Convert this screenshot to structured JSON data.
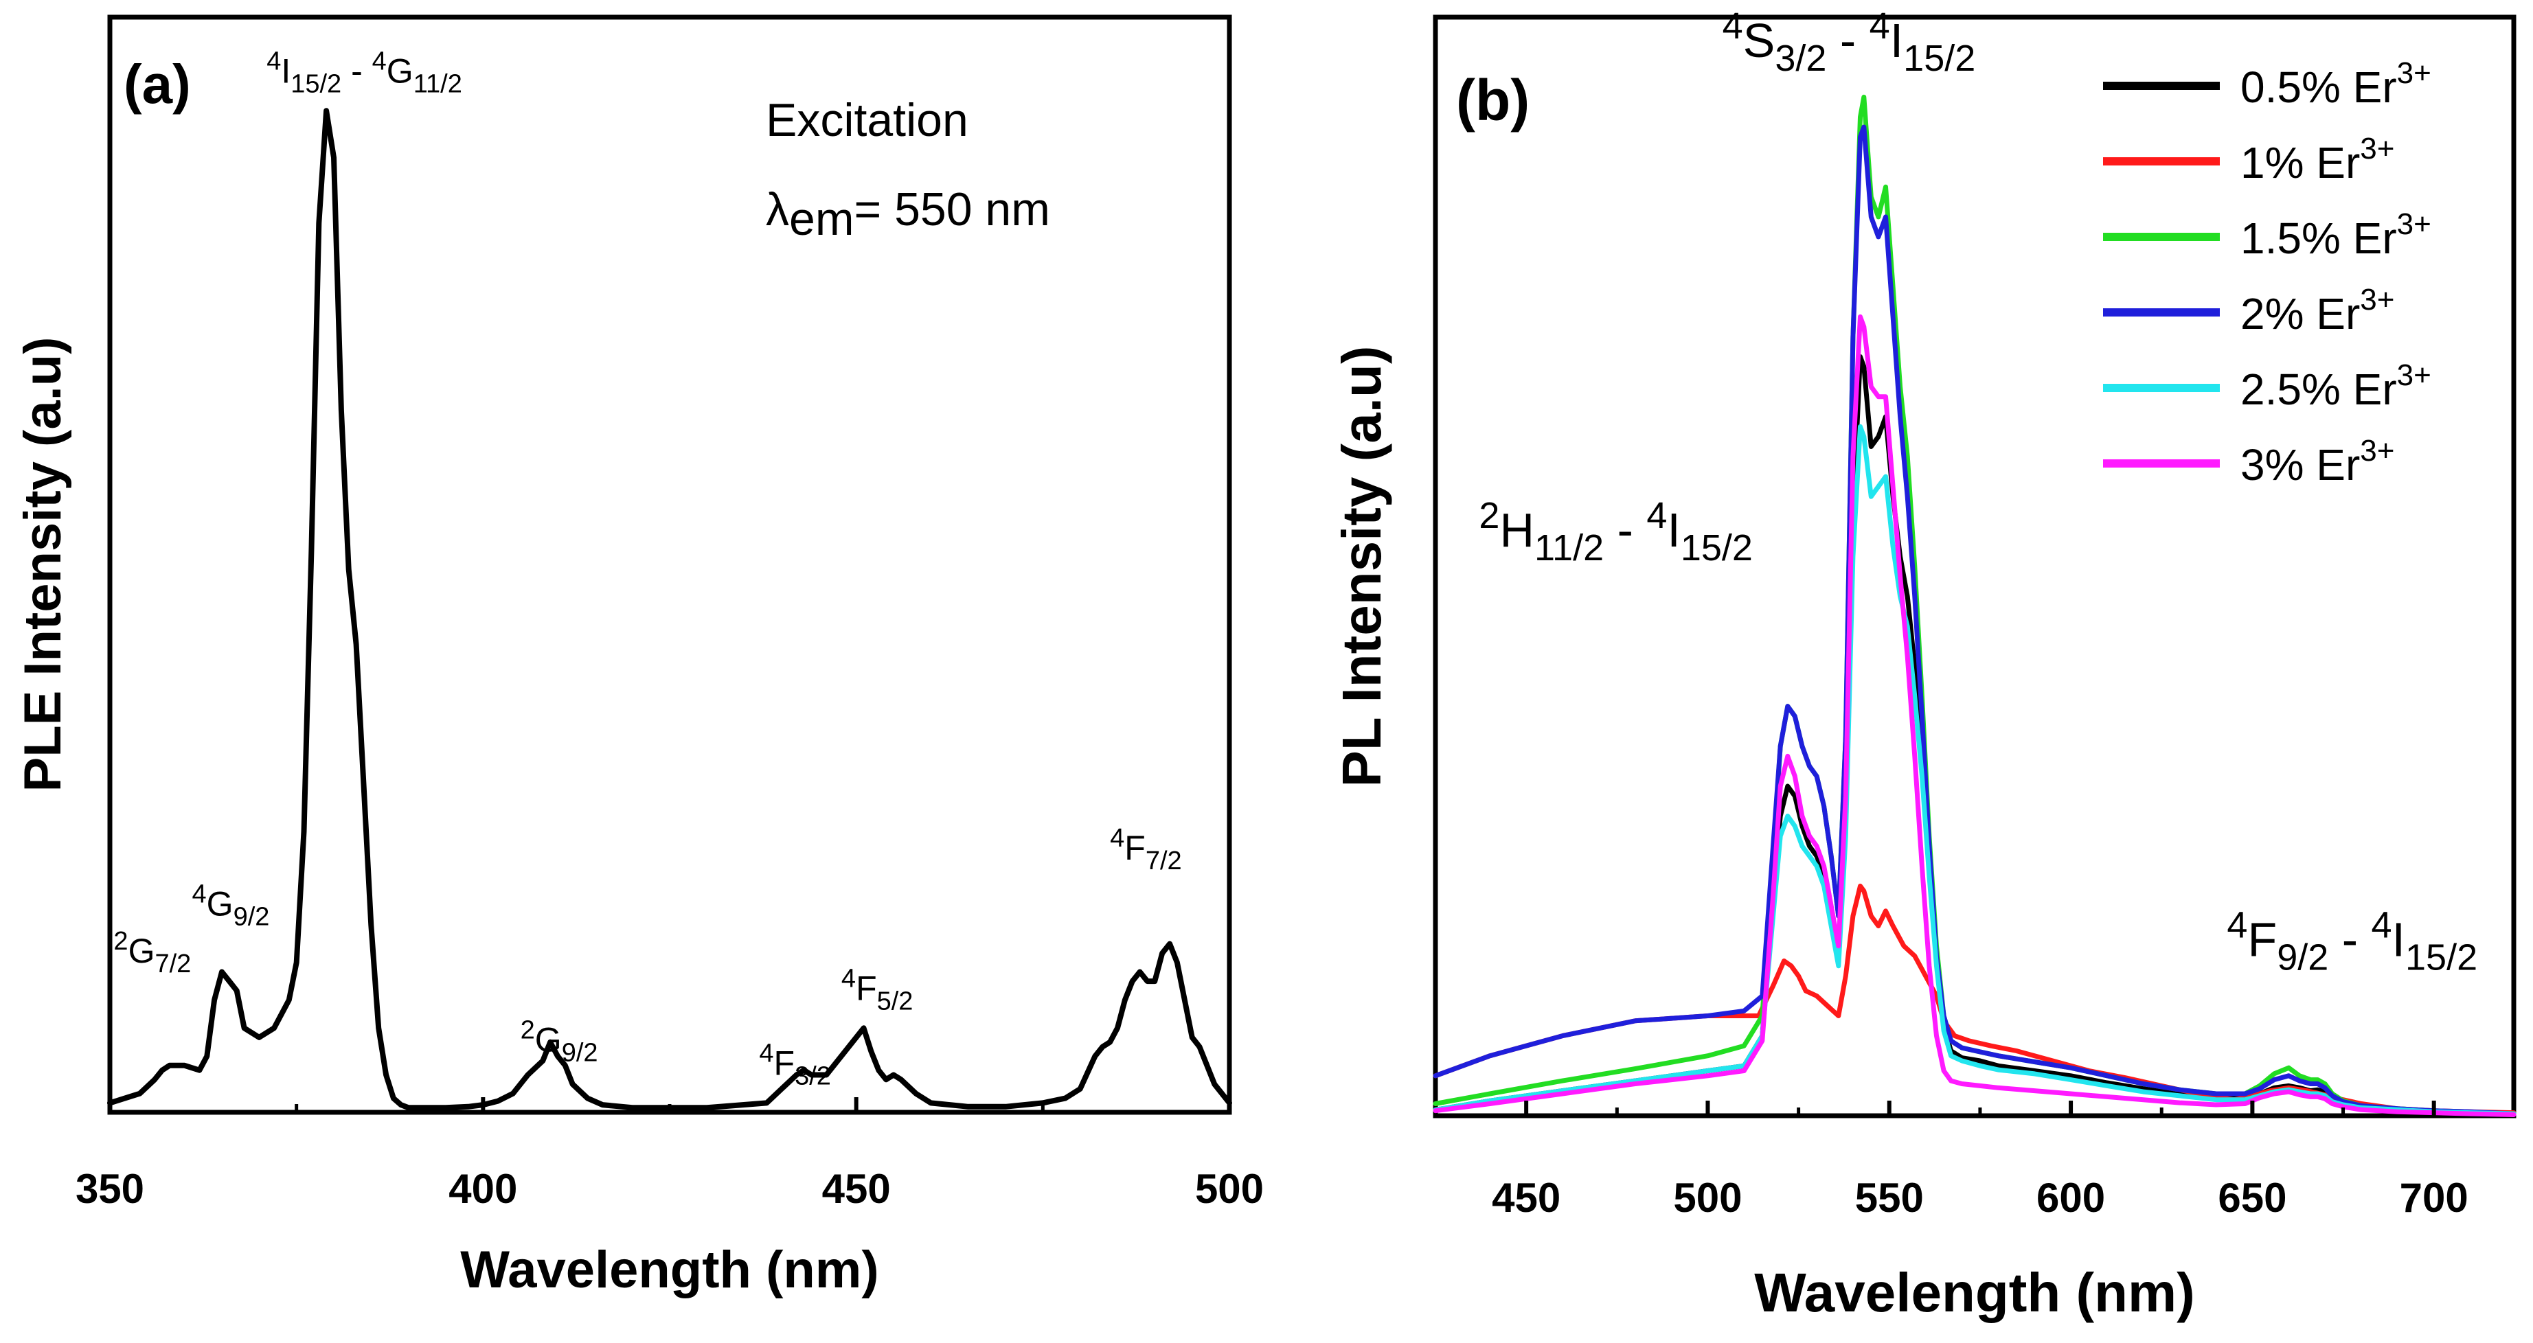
{
  "chart_data": [
    {
      "type": "line",
      "panel_label": "(a)",
      "xlabel": "Wavelength (nm)",
      "ylabel": "PLE Intensity (a.u)",
      "xlim": [
        350,
        500
      ],
      "ylim": [
        0,
        1.17
      ],
      "x_ticks": [
        "350",
        "400",
        "450",
        "500"
      ],
      "grid": false,
      "info_text": {
        "line1": "Excitation",
        "lambda": "λ",
        "em": "em",
        "rest": "= 550 nm"
      },
      "annotations": [
        {
          "sup": "4",
          "base": "I",
          "sub": "15/2",
          "sep": " - ",
          "sup2": "4",
          "base2": "G",
          "sub2": "11/2",
          "x": 371,
          "y": 1.1
        },
        {
          "sup": "4",
          "base": "G",
          "sub": "9/2",
          "x": 361,
          "y": 0.21
        },
        {
          "sup": "2",
          "base": "G",
          "sub": "7/2",
          "x": 350.5,
          "y": 0.16
        },
        {
          "sup": "2",
          "base": "G",
          "sub": "9/2",
          "x": 405,
          "y": 0.065
        },
        {
          "sup": "4",
          "base": "F",
          "sub": "3/2",
          "x": 437,
          "y": 0.04
        },
        {
          "sup": "4",
          "base": "F",
          "sub": "5/2",
          "x": 448,
          "y": 0.12
        },
        {
          "sup": "4",
          "base": "F",
          "sub": "7/2",
          "x": 484,
          "y": 0.27
        }
      ],
      "series": [
        {
          "name": "Excitation",
          "color": "#000000",
          "x": [
            350,
            352,
            354,
            356,
            357,
            358,
            360,
            362,
            363,
            364,
            365,
            366,
            367,
            368,
            370,
            372,
            374,
            375,
            376,
            377,
            378,
            379,
            380,
            381,
            382,
            383,
            384,
            385,
            386,
            387,
            388,
            389,
            390,
            392,
            395,
            398,
            400,
            402,
            404,
            406,
            408,
            409,
            410,
            411,
            412,
            414,
            416,
            420,
            430,
            438,
            440,
            442,
            443,
            444,
            446,
            448,
            450,
            451,
            452,
            453,
            454,
            455,
            456,
            458,
            460,
            465,
            470,
            475,
            478,
            480,
            482,
            483,
            484,
            485,
            486,
            487,
            488,
            489,
            490,
            491,
            492,
            493,
            494,
            495,
            496,
            498,
            500
          ],
          "y": [
            0.01,
            0.015,
            0.02,
            0.035,
            0.045,
            0.05,
            0.05,
            0.045,
            0.06,
            0.12,
            0.15,
            0.14,
            0.13,
            0.09,
            0.08,
            0.09,
            0.12,
            0.16,
            0.3,
            0.6,
            0.95,
            1.07,
            1.02,
            0.75,
            0.58,
            0.5,
            0.35,
            0.2,
            0.09,
            0.04,
            0.015,
            0.008,
            0.005,
            0.005,
            0.005,
            0.006,
            0.008,
            0.012,
            0.02,
            0.04,
            0.055,
            0.075,
            0.06,
            0.05,
            0.03,
            0.015,
            0.008,
            0.005,
            0.005,
            0.01,
            0.025,
            0.04,
            0.045,
            0.04,
            0.04,
            0.06,
            0.08,
            0.09,
            0.065,
            0.045,
            0.035,
            0.04,
            0.035,
            0.02,
            0.01,
            0.006,
            0.006,
            0.01,
            0.015,
            0.025,
            0.06,
            0.07,
            0.075,
            0.09,
            0.12,
            0.14,
            0.15,
            0.14,
            0.14,
            0.17,
            0.18,
            0.16,
            0.12,
            0.08,
            0.07,
            0.03,
            0.01
          ]
        }
      ]
    },
    {
      "type": "line",
      "panel_label": "(b)",
      "xlabel": "Wavelength (nm)",
      "ylabel": "PL Intensity (a.u)",
      "xlim": [
        425,
        722
      ],
      "ylim": [
        0,
        1.1
      ],
      "x_ticks": [
        "450",
        "500",
        "550",
        "600",
        "650",
        "700"
      ],
      "grid": false,
      "legend_position": "top-right",
      "legend_sup": "3+",
      "annotations": [
        {
          "sup": "4",
          "base": "S",
          "sub": "3/2",
          "sep": " - ",
          "sup2": "4",
          "base2": "I",
          "sub2": "15/2",
          "x": 504,
          "y": 1.06
        },
        {
          "sup": "2",
          "base": "H",
          "sub": "11/2",
          "sep": " - ",
          "sup2": "4",
          "base2": "I",
          "sub2": "15/2",
          "x": 437,
          "y": 0.57
        },
        {
          "sup": "4",
          "base": "F",
          "sub": "9/2",
          "sep": " - ",
          "sup2": "4",
          "base2": "I",
          "sub2": "15/2",
          "x": 643,
          "y": 0.16
        }
      ],
      "series": [
        {
          "name": "0.5% Er",
          "color": "#000000",
          "x": [
            425,
            440,
            460,
            480,
            500,
            510,
            515,
            518,
            520,
            522,
            524,
            526,
            528,
            530,
            532,
            534,
            536,
            538,
            540,
            542,
            543,
            545,
            547,
            549,
            551,
            553,
            555,
            557,
            559,
            561,
            563,
            565,
            567,
            570,
            575,
            580,
            590,
            600,
            610,
            620,
            630,
            640,
            648,
            652,
            656,
            660,
            663,
            666,
            668,
            670,
            672,
            675,
            680,
            690,
            700,
            710,
            722
          ],
          "y": [
            0.006,
            0.015,
            0.025,
            0.035,
            0.045,
            0.05,
            0.08,
            0.22,
            0.3,
            0.33,
            0.32,
            0.29,
            0.27,
            0.26,
            0.24,
            0.2,
            0.16,
            0.3,
            0.6,
            0.76,
            0.75,
            0.67,
            0.68,
            0.7,
            0.62,
            0.56,
            0.52,
            0.45,
            0.36,
            0.26,
            0.16,
            0.09,
            0.065,
            0.058,
            0.055,
            0.05,
            0.045,
            0.04,
            0.033,
            0.027,
            0.022,
            0.018,
            0.018,
            0.022,
            0.028,
            0.03,
            0.028,
            0.025,
            0.026,
            0.024,
            0.017,
            0.013,
            0.009,
            0.006,
            0.004,
            0.003,
            0.002
          ]
        },
        {
          "name": "1% Er",
          "color": "#ff1a1a",
          "x": [
            425,
            440,
            460,
            480,
            500,
            510,
            514,
            518,
            521,
            523,
            525,
            527,
            530,
            533,
            536,
            538,
            540,
            542,
            543,
            545,
            547,
            549,
            551,
            554,
            557,
            560,
            563,
            565,
            568,
            572,
            578,
            585,
            595,
            605,
            615,
            625,
            635,
            645,
            650,
            655,
            660,
            665,
            670,
            675,
            680,
            690,
            700,
            710,
            722
          ],
          "y": [
            0.04,
            0.06,
            0.08,
            0.095,
            0.1,
            0.1,
            0.1,
            0.13,
            0.155,
            0.15,
            0.14,
            0.125,
            0.12,
            0.11,
            0.1,
            0.14,
            0.2,
            0.23,
            0.225,
            0.2,
            0.19,
            0.205,
            0.19,
            0.17,
            0.16,
            0.14,
            0.12,
            0.095,
            0.08,
            0.075,
            0.07,
            0.065,
            0.055,
            0.045,
            0.038,
            0.03,
            0.022,
            0.016,
            0.02,
            0.025,
            0.028,
            0.025,
            0.021,
            0.016,
            0.012,
            0.007,
            0.005,
            0.004,
            0.003
          ]
        },
        {
          "name": "1.5% Er",
          "color": "#22dd22",
          "x": [
            425,
            440,
            460,
            480,
            500,
            510,
            515,
            518,
            520,
            522,
            524,
            526,
            528,
            530,
            532,
            534,
            536,
            538,
            540,
            542,
            543,
            545,
            547,
            549,
            551,
            553,
            555,
            557,
            559,
            561,
            563,
            565,
            567,
            570,
            575,
            580,
            590,
            600,
            610,
            620,
            630,
            640,
            648,
            652,
            656,
            660,
            663,
            666,
            668,
            670,
            672,
            675,
            680,
            690,
            700,
            710,
            722
          ],
          "y": [
            0.012,
            0.022,
            0.035,
            0.047,
            0.06,
            0.07,
            0.1,
            0.26,
            0.37,
            0.41,
            0.4,
            0.37,
            0.35,
            0.34,
            0.31,
            0.26,
            0.2,
            0.38,
            0.78,
            1.0,
            1.02,
            0.92,
            0.9,
            0.93,
            0.83,
            0.73,
            0.66,
            0.55,
            0.42,
            0.28,
            0.17,
            0.1,
            0.075,
            0.068,
            0.064,
            0.06,
            0.054,
            0.048,
            0.04,
            0.032,
            0.026,
            0.022,
            0.022,
            0.03,
            0.042,
            0.048,
            0.04,
            0.036,
            0.036,
            0.032,
            0.022,
            0.015,
            0.01,
            0.007,
            0.005,
            0.003,
            0.002
          ]
        },
        {
          "name": "2% Er",
          "color": "#1f1fdb",
          "x": [
            425,
            440,
            460,
            480,
            500,
            510,
            515,
            518,
            520,
            522,
            524,
            526,
            528,
            530,
            532,
            534,
            536,
            538,
            540,
            542,
            543,
            545,
            547,
            549,
            551,
            553,
            555,
            557,
            559,
            561,
            563,
            565,
            567,
            570,
            575,
            580,
            590,
            600,
            610,
            620,
            630,
            640,
            648,
            652,
            656,
            660,
            663,
            666,
            668,
            670,
            672,
            675,
            680,
            690,
            700,
            710,
            722
          ],
          "y": [
            0.04,
            0.06,
            0.08,
            0.095,
            0.1,
            0.105,
            0.12,
            0.27,
            0.37,
            0.41,
            0.4,
            0.37,
            0.35,
            0.34,
            0.31,
            0.26,
            0.2,
            0.38,
            0.78,
            0.98,
            0.99,
            0.9,
            0.88,
            0.9,
            0.8,
            0.7,
            0.62,
            0.52,
            0.4,
            0.27,
            0.16,
            0.1,
            0.075,
            0.068,
            0.064,
            0.06,
            0.054,
            0.048,
            0.04,
            0.032,
            0.026,
            0.022,
            0.022,
            0.027,
            0.036,
            0.04,
            0.035,
            0.032,
            0.032,
            0.028,
            0.02,
            0.014,
            0.01,
            0.007,
            0.005,
            0.004,
            0.002
          ]
        },
        {
          "name": "2.5% Er",
          "color": "#22e5ee",
          "x": [
            425,
            440,
            460,
            480,
            500,
            510,
            515,
            518,
            520,
            522,
            524,
            526,
            528,
            530,
            532,
            534,
            536,
            538,
            540,
            542,
            543,
            545,
            547,
            549,
            551,
            553,
            555,
            557,
            559,
            561,
            563,
            565,
            567,
            570,
            575,
            580,
            590,
            600,
            610,
            620,
            630,
            640,
            648,
            652,
            656,
            660,
            663,
            666,
            668,
            670,
            672,
            675,
            680,
            690,
            700,
            710,
            722
          ],
          "y": [
            0.006,
            0.015,
            0.025,
            0.035,
            0.045,
            0.05,
            0.08,
            0.2,
            0.28,
            0.3,
            0.29,
            0.27,
            0.26,
            0.25,
            0.23,
            0.19,
            0.15,
            0.28,
            0.56,
            0.69,
            0.68,
            0.62,
            0.63,
            0.64,
            0.57,
            0.52,
            0.49,
            0.42,
            0.34,
            0.24,
            0.15,
            0.085,
            0.06,
            0.055,
            0.05,
            0.046,
            0.042,
            0.036,
            0.03,
            0.024,
            0.02,
            0.016,
            0.016,
            0.02,
            0.024,
            0.026,
            0.024,
            0.022,
            0.022,
            0.02,
            0.014,
            0.011,
            0.008,
            0.006,
            0.004,
            0.003,
            0.002
          ]
        },
        {
          "name": "3% Er",
          "color": "#ff1aff",
          "x": [
            425,
            440,
            460,
            480,
            500,
            510,
            515,
            518,
            520,
            522,
            524,
            526,
            528,
            530,
            532,
            534,
            536,
            538,
            540,
            542,
            543,
            545,
            547,
            549,
            551,
            553,
            555,
            557,
            559,
            561,
            563,
            565,
            567,
            570,
            575,
            580,
            590,
            600,
            610,
            620,
            630,
            640,
            648,
            652,
            656,
            660,
            663,
            666,
            668,
            670,
            672,
            675,
            680,
            690,
            700,
            710,
            722
          ],
          "y": [
            0.005,
            0.012,
            0.022,
            0.032,
            0.04,
            0.045,
            0.075,
            0.22,
            0.33,
            0.36,
            0.34,
            0.3,
            0.28,
            0.27,
            0.25,
            0.21,
            0.17,
            0.32,
            0.66,
            0.8,
            0.79,
            0.73,
            0.72,
            0.72,
            0.63,
            0.54,
            0.46,
            0.36,
            0.25,
            0.15,
            0.08,
            0.045,
            0.035,
            0.032,
            0.03,
            0.028,
            0.025,
            0.022,
            0.019,
            0.016,
            0.013,
            0.011,
            0.012,
            0.018,
            0.022,
            0.024,
            0.021,
            0.019,
            0.019,
            0.017,
            0.012,
            0.009,
            0.006,
            0.004,
            0.003,
            0.002,
            0.001
          ]
        }
      ]
    }
  ]
}
